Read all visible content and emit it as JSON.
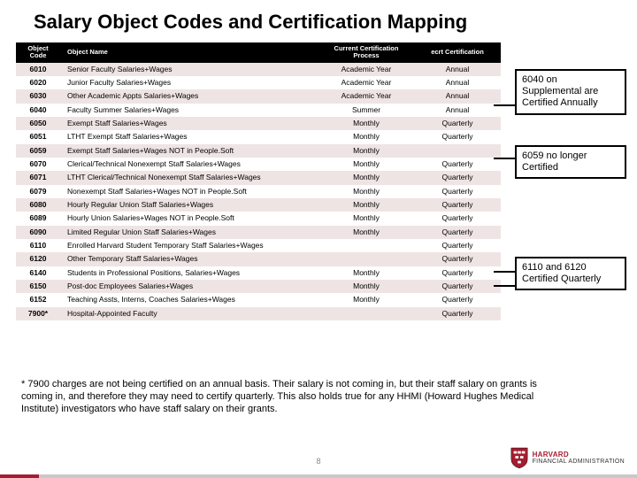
{
  "title": "Salary Object Codes and Certification Mapping",
  "headers": {
    "code": "Object Code",
    "name": "Object Name",
    "current": "Current Certification Process",
    "ecrt": "ecrt Certification"
  },
  "rows": [
    {
      "code": "6010",
      "name": "Senior Faculty Salaries+Wages",
      "cur": "Academic Year",
      "ecrt": "Annual"
    },
    {
      "code": "6020",
      "name": "Junior Faculty Salaries+Wages",
      "cur": "Academic Year",
      "ecrt": "Annual"
    },
    {
      "code": "6030",
      "name": "Other Academic Appts Salaries+Wages",
      "cur": "Academic Year",
      "ecrt": "Annual"
    },
    {
      "code": "6040",
      "name": "Faculty Summer Salaries+Wages",
      "cur": "Summer",
      "ecrt": "Annual"
    },
    {
      "code": "6050",
      "name": "Exempt Staff Salaries+Wages",
      "cur": "Monthly",
      "ecrt": "Quarterly"
    },
    {
      "code": "6051",
      "name": "LTHT Exempt Staff Salaries+Wages",
      "cur": "Monthly",
      "ecrt": "Quarterly"
    },
    {
      "code": "6059",
      "name": "Exempt Staff Salaries+Wages NOT in People.Soft",
      "cur": "Monthly",
      "ecrt": ""
    },
    {
      "code": "6070",
      "name": "Clerical/Technical Nonexempt Staff Salaries+Wages",
      "cur": "Monthly",
      "ecrt": "Quarterly"
    },
    {
      "code": "6071",
      "name": "LTHT Clerical/Technical Nonexempt Staff Salaries+Wages",
      "cur": "Monthly",
      "ecrt": "Quarterly"
    },
    {
      "code": "6079",
      "name": "Nonexempt Staff Salaries+Wages NOT in People.Soft",
      "cur": "Monthly",
      "ecrt": "Quarterly"
    },
    {
      "code": "6080",
      "name": "Hourly Regular Union Staff Salaries+Wages",
      "cur": "Monthly",
      "ecrt": "Quarterly"
    },
    {
      "code": "6089",
      "name": "Hourly Union Salaries+Wages NOT in People.Soft",
      "cur": "Monthly",
      "ecrt": "Quarterly"
    },
    {
      "code": "6090",
      "name": "Limited Regular Union Staff Salaries+Wages",
      "cur": "Monthly",
      "ecrt": "Quarterly"
    },
    {
      "code": "6110",
      "name": "Enrolled Harvard Student Temporary Staff Salaries+Wages",
      "cur": "",
      "ecrt": "Quarterly"
    },
    {
      "code": "6120",
      "name": "Other Temporary Staff Salaries+Wages",
      "cur": "",
      "ecrt": "Quarterly"
    },
    {
      "code": "6140",
      "name": "Students in Professional Positions, Salaries+Wages",
      "cur": "Monthly",
      "ecrt": "Quarterly"
    },
    {
      "code": "6150",
      "name": "Post-doc Employees Salaries+Wages",
      "cur": "Monthly",
      "ecrt": "Quarterly"
    },
    {
      "code": "6152",
      "name": "Teaching Assts, Interns, Coaches Salaries+Wages",
      "cur": "Monthly",
      "ecrt": "Quarterly"
    },
    {
      "code": "7900*",
      "name": "Hospital-Appointed Faculty",
      "cur": "",
      "ecrt": "Quarterly"
    }
  ],
  "callouts": {
    "c1": "6040 on Supplemental are Certified Annually",
    "c2": "6059 no longer Certified",
    "c3": "6110 and 6120 Certified Quarterly"
  },
  "footnote": "*  7900 charges are not being certified on an annual basis.  Their salary is not coming in, but their staff salary on grants is coming in, and therefore they may need to certify quarterly.  This also holds true for any HHMI (Howard Hughes Medical Institute) investigators who have staff salary on their grants.",
  "pagenum": "8",
  "logo": {
    "brand": "HARVARD",
    "sub": "Financial Administration"
  },
  "colors": {
    "header_bg": "#000000",
    "row_odd": "#efe4e4",
    "row_even": "#ffffff",
    "accent": "#a51c30"
  }
}
